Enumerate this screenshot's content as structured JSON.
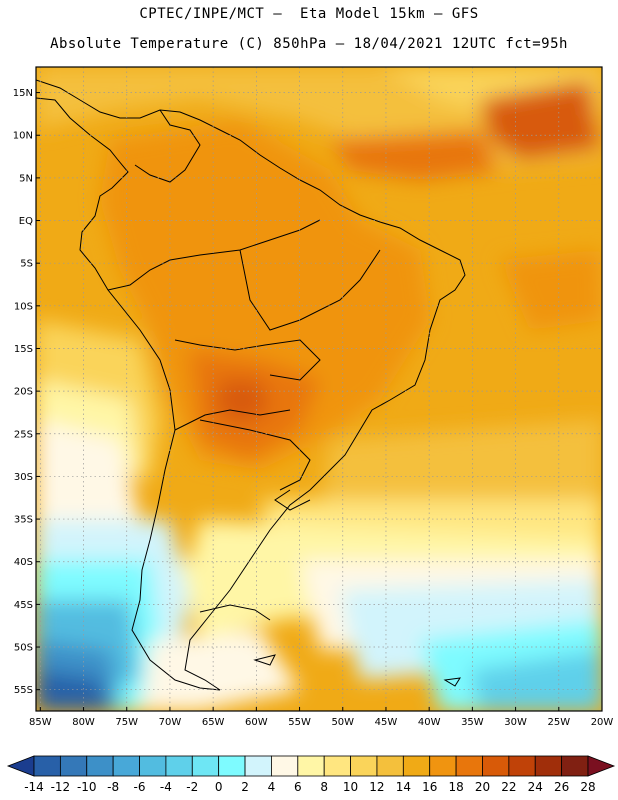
{
  "header": {
    "line1": "CPTEC/INPE/MCT –  Eta Model 15km – GFS",
    "line2": "Absolute Temperature (C) 850hPa – 18/04/2021 12UTC fct=95h"
  },
  "map": {
    "lat_ticks": [
      "15N",
      "10N",
      "5N",
      "EQ",
      "5S",
      "10S",
      "15S",
      "20S",
      "25S",
      "30S",
      "35S",
      "40S",
      "45S",
      "50S",
      "55S"
    ],
    "lon_ticks": [
      "85W",
      "80W",
      "75W",
      "70W",
      "65W",
      "60W",
      "55W",
      "50W",
      "45W",
      "40W",
      "35W",
      "30W",
      "25W",
      "20W"
    ],
    "lat_range": [
      18,
      -57.5
    ],
    "lon_range": [
      -85.5,
      -20
    ]
  },
  "colorbar": {
    "labels": [
      "-14",
      "-12",
      "-10",
      "-8",
      "-6",
      "-4",
      "-2",
      "0",
      "2",
      "4",
      "6",
      "8",
      "10",
      "12",
      "14",
      "16",
      "18",
      "20",
      "22",
      "24",
      "26",
      "28"
    ],
    "colors": [
      "#1b3d8f",
      "#2860a8",
      "#3478b8",
      "#3d90c8",
      "#48a8d8",
      "#52bce0",
      "#5fd0ea",
      "#6ee6f4",
      "#7efbff",
      "#d2f4fc",
      "#fff8e6",
      "#fff6a6",
      "#ffe680",
      "#fad45a",
      "#f4c03c",
      "#f0aa16",
      "#f09410",
      "#e8760c",
      "#d85a08",
      "#c04208",
      "#a02e0a",
      "#802012",
      "#7a1020"
    ]
  }
}
